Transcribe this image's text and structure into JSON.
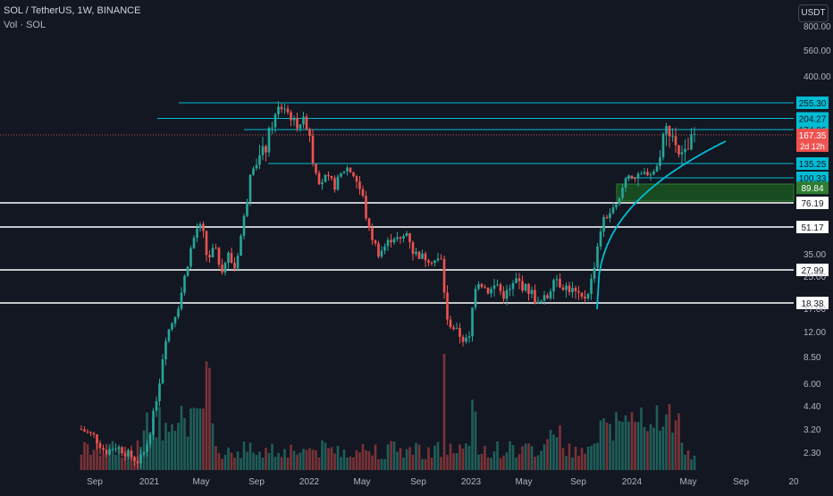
{
  "header": {
    "title": "SOL / TetherUS, 1W, BINANCE",
    "volume_label": "Vol · SOL",
    "currency_button": "USDT"
  },
  "colors": {
    "background": "#131722",
    "up": "#26a69a",
    "down": "#ef5350",
    "accent_line": "#00bcd4",
    "axis_text": "#b2b5be",
    "white_line": "#ffffff",
    "zone_fill": "#1b5e20"
  },
  "chart_data": {
    "type": "candlestick",
    "title": "SOL / TetherUS, 1W, BINANCE",
    "y_scale": "log",
    "ylim": [
      1.8,
      1000
    ],
    "x_tick_labels": [
      "Sep",
      "2021",
      "May",
      "Sep",
      "2022",
      "May",
      "Sep",
      "2023",
      "May",
      "Sep",
      "2024",
      "May",
      "Sep",
      "20"
    ],
    "y_tick_labels": [
      800,
      560,
      400,
      35,
      25,
      17,
      12,
      8.5,
      6,
      4.4,
      3.2,
      2.3
    ],
    "y_tick_text": [
      "800.00",
      "560.00",
      "400.00",
      "35.00",
      "25.00",
      "17.00",
      "12.00",
      "8.50",
      "6.00",
      "4.40",
      "3.20",
      "2.30"
    ],
    "horizontal_levels": [
      {
        "value": 255.3,
        "label": "255.30",
        "style": "cyan"
      },
      {
        "value": 204.27,
        "label": "204.27",
        "style": "cyan"
      },
      {
        "value": 174.06,
        "label": "174.06",
        "style": "cyan"
      },
      {
        "value": 135.25,
        "label": "135.25",
        "style": "cyan"
      },
      {
        "value": 100.33,
        "label": "100.33",
        "style": "cyan"
      },
      {
        "value": 89.84,
        "label": "89.84",
        "style": "zone"
      },
      {
        "value": 76.19,
        "label": "76.19",
        "style": "white"
      },
      {
        "value": 51.17,
        "label": "51.17",
        "style": "white"
      },
      {
        "value": 27.99,
        "label": "27.99",
        "style": "white"
      },
      {
        "value": 18.38,
        "label": "18.38",
        "style": "white"
      }
    ],
    "last_price": {
      "value": 167.35,
      "label": "167.35",
      "countdown": "2d 12h"
    },
    "series": [
      {
        "name": "Vol · SOL",
        "type": "volume"
      }
    ]
  }
}
